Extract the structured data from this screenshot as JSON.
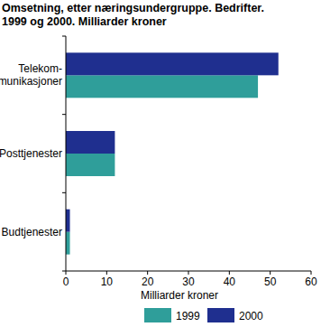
{
  "chart_data": {
    "type": "bar",
    "orientation": "horizontal",
    "title": "Omsetning, etter næringsundergruppe. Bedrifter.\n1999 og 2000. Milliarder kroner",
    "x_label": "Milliarder kroner",
    "categories": [
      "Telekom-\nmunikasjoner",
      "Posttjenester",
      "Budtjenester"
    ],
    "series": [
      {
        "name": "1999",
        "color": "#2f9e9a",
        "values": [
          47,
          12,
          1
        ]
      },
      {
        "name": "2000",
        "color": "#1f2f8f",
        "values": [
          52,
          12,
          1
        ]
      }
    ],
    "xlim": [
      0,
      60
    ],
    "xticks": [
      0,
      10,
      20,
      30,
      40,
      50,
      60
    ],
    "grid": false,
    "legend": "bottom"
  }
}
